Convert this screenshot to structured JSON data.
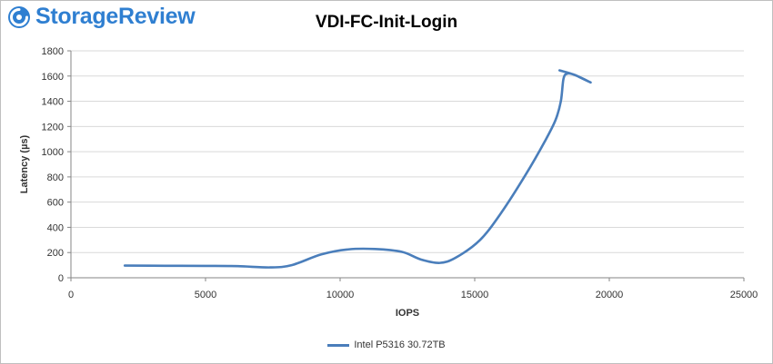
{
  "brand": {
    "name": "StorageReview",
    "color": "#2f7fd1"
  },
  "chart_data": {
    "type": "line",
    "title": "VDI-FC-Init-Login",
    "xlabel": "IOPS",
    "ylabel": "Latency (µs)",
    "xlim": [
      0,
      25000
    ],
    "ylim": [
      0,
      1800
    ],
    "x_ticks": [
      0,
      5000,
      10000,
      15000,
      20000,
      25000
    ],
    "y_ticks": [
      0,
      200,
      400,
      600,
      800,
      1000,
      1200,
      1400,
      1600,
      1800
    ],
    "grid": "horizontal",
    "legend_position": "bottom",
    "series": [
      {
        "name": "Intel P5316 30.72TB",
        "color": "#4a7ebb",
        "points": [
          [
            2000,
            97
          ],
          [
            3500,
            95
          ],
          [
            5000,
            94
          ],
          [
            6200,
            92
          ],
          [
            7400,
            82
          ],
          [
            8200,
            100
          ],
          [
            9300,
            185
          ],
          [
            10300,
            225
          ],
          [
            11300,
            228
          ],
          [
            12300,
            205
          ],
          [
            13000,
            145
          ],
          [
            13700,
            118
          ],
          [
            14300,
            160
          ],
          [
            15200,
            300
          ],
          [
            16000,
            520
          ],
          [
            16900,
            820
          ],
          [
            17600,
            1080
          ],
          [
            18000,
            1250
          ],
          [
            18200,
            1400
          ],
          [
            18300,
            1580
          ],
          [
            18450,
            1620
          ],
          [
            18700,
            1610
          ],
          [
            19000,
            1580
          ],
          [
            19300,
            1550
          ],
          [
            18700,
            1610
          ],
          [
            18150,
            1645
          ]
        ]
      }
    ]
  }
}
